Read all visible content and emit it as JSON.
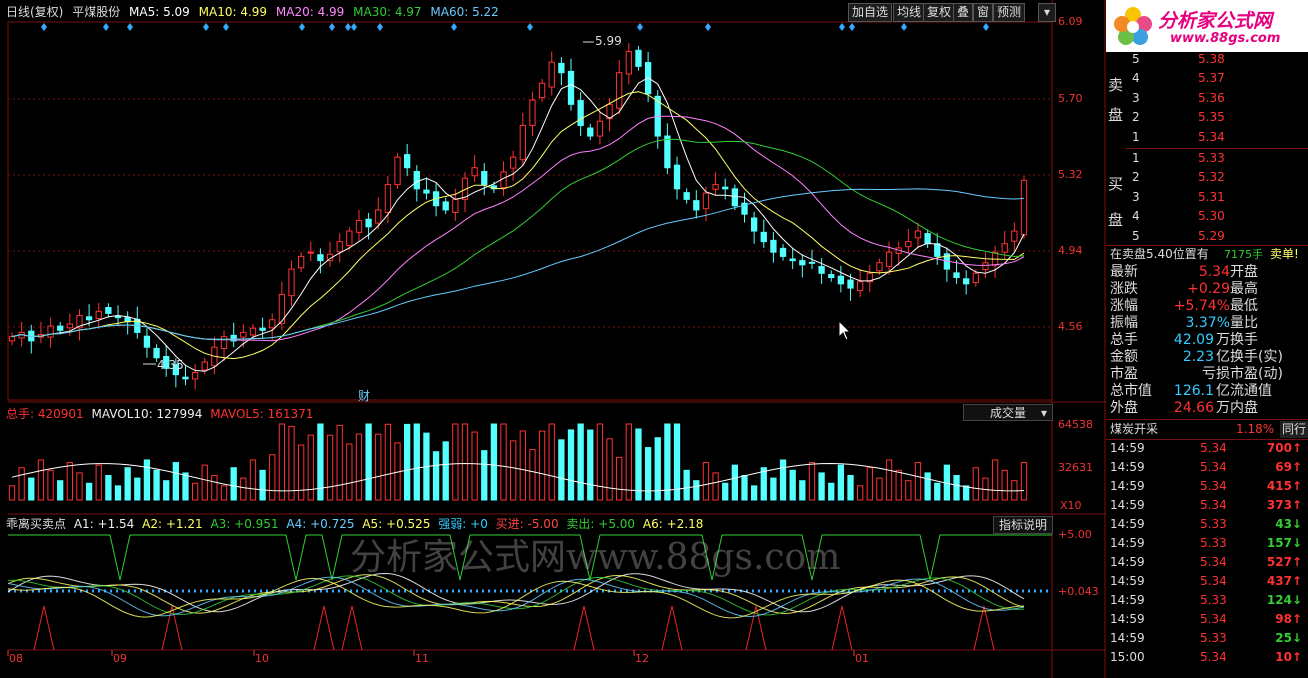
{
  "header": {
    "period_label": "日线(复权)",
    "stock_name": "平煤股份",
    "ma5": "MA5: 5.09",
    "ma10": "MA10: 4.99",
    "ma20": "MA20: 4.99",
    "ma30": "MA30: 4.97",
    "ma60": "MA60: 5.22"
  },
  "toolbar": {
    "add_watch": "加自选",
    "ma_line": "均线",
    "adjust": "复权",
    "overlay": "叠",
    "window": "窗",
    "forecast": "预测"
  },
  "price_axis": [
    "6.09",
    "5.70",
    "5.32",
    "4.94",
    "4.56"
  ],
  "annotations": {
    "high": "5.99",
    "low": "4.35",
    "marker": "财"
  },
  "volume_panel": {
    "total": "总手: 420901",
    "mavol10": "MAVOL10: 127994",
    "mavol5": "MAVOL5: 161371",
    "selector": "成交量",
    "axis": [
      "64538",
      "32631"
    ],
    "unit": "X10"
  },
  "indicator_panel": {
    "name": "乖离买卖点",
    "a1": "A1: +1.54",
    "a2": "A2: +1.21",
    "a3": "A3: +0.951",
    "a4": "A4: +0.725",
    "a5": "A5: +0.525",
    "strength": "强弱: +0",
    "buy_in": "买进: -5.00",
    "sell_out": "卖出: +5.00",
    "a6": "A6: +2.18",
    "help_button": "指标说明",
    "axis": [
      "+5.00",
      "+0.043"
    ]
  },
  "date_axis": [
    "08",
    "09",
    "10",
    "11",
    "12",
    "01"
  ],
  "watermark": {
    "logo_text": "分析家公式网",
    "logo_url": "www.88gs.com",
    "overlay": "分析家公式网www.88gs.com"
  },
  "order_book": {
    "sell_label": "卖盘",
    "buy_label": "买盘",
    "sell": [
      {
        "level": "5",
        "price": "5.38"
      },
      {
        "level": "4",
        "price": "5.37"
      },
      {
        "level": "3",
        "price": "5.36"
      },
      {
        "level": "2",
        "price": "5.35"
      },
      {
        "level": "1",
        "price": "5.34"
      }
    ],
    "buy": [
      {
        "level": "1",
        "price": "5.33"
      },
      {
        "level": "2",
        "price": "5.32"
      },
      {
        "level": "3",
        "price": "5.31"
      },
      {
        "level": "4",
        "price": "5.30"
      },
      {
        "level": "5",
        "price": "5.29"
      }
    ],
    "position_line": "在卖盘5.40位置有",
    "position_qty": "7175手",
    "position_tag": "卖单!"
  },
  "quote": {
    "latest_label": "最新",
    "latest_value": "5.34",
    "open_label": "开盘",
    "change_label": "涨跌",
    "change_value": "+0.29",
    "high_label": "最高",
    "pct_label": "涨幅",
    "pct_value": "+5.74%",
    "low_label": "最低",
    "amp_label": "振幅",
    "amp_value": "3.37%",
    "vol_ratio_label": "量比",
    "total_label": "总手",
    "total_value": "42.09",
    "total_unit": "万",
    "turnover_label": "换手",
    "amount_label": "金额",
    "amount_value": "2.23",
    "amount_unit": "亿",
    "turnover_real_label": "换手(实)",
    "pe_label": "市盈",
    "pe_value": "亏损",
    "pe_dyn_label": "市盈(动)",
    "mcap_label": "总市值",
    "mcap_value": "126.1",
    "mcap_unit": "亿",
    "float_label": "流通值",
    "outer_label": "外盘",
    "outer_value": "24.66",
    "outer_unit": "万",
    "inner_label": "内盘"
  },
  "sector": {
    "name": "煤炭开采",
    "pct": "1.18%",
    "peer": "同行"
  },
  "ticks": [
    {
      "time": "14:59",
      "price": "5.34",
      "vol": "700",
      "side": "sell"
    },
    {
      "time": "14:59",
      "price": "5.34",
      "vol": "69",
      "side": "sell"
    },
    {
      "time": "14:59",
      "price": "5.34",
      "vol": "415",
      "side": "sell"
    },
    {
      "time": "14:59",
      "price": "5.34",
      "vol": "373",
      "side": "sell"
    },
    {
      "time": "14:59",
      "price": "5.33",
      "vol": "43",
      "side": "buy"
    },
    {
      "time": "14:59",
      "price": "5.33",
      "vol": "157",
      "side": "buy"
    },
    {
      "time": "14:59",
      "price": "5.34",
      "vol": "527",
      "side": "sell"
    },
    {
      "time": "14:59",
      "price": "5.34",
      "vol": "437",
      "side": "sell"
    },
    {
      "time": "14:59",
      "price": "5.33",
      "vol": "124",
      "side": "buy"
    },
    {
      "time": "14:59",
      "price": "5.34",
      "vol": "98",
      "side": "sell"
    },
    {
      "time": "14:59",
      "price": "5.33",
      "vol": "25",
      "side": "buy"
    },
    {
      "time": "15:00",
      "price": "5.34",
      "vol": "10",
      "side": "sell"
    }
  ],
  "colors": {
    "up": "#ff3232",
    "down": "#54ffff",
    "ma5": "#ffffff",
    "ma10": "#ffff66",
    "ma20": "#ff80ff",
    "ma30": "#33cc33",
    "ma60": "#66ccff",
    "grid": "#7a1010"
  }
}
